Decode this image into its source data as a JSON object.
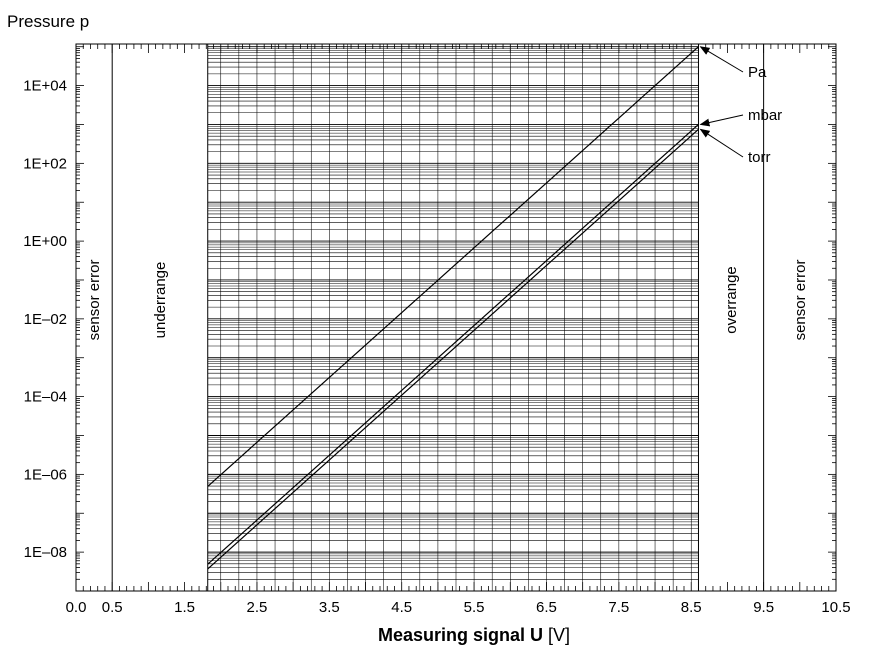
{
  "chart_data": {
    "type": "line",
    "title": "",
    "ylabel": "Pressure p",
    "xlabel": "Measuring signal U [V]",
    "xlabel_main": "Measuring signal U ",
    "xlabel_unit": "[V]",
    "x_scale": "linear",
    "y_scale": "log",
    "xlim": [
      0,
      10.5
    ],
    "ylim": [
      1e-09,
      120000.0
    ],
    "x_ticks": [
      0.0,
      0.5,
      1.5,
      2.5,
      3.5,
      4.5,
      5.5,
      6.5,
      7.5,
      8.5,
      9.5,
      10.5
    ],
    "x_tick_labels": [
      "0.0",
      "0.5",
      "1.5",
      "2.5",
      "3.5",
      "4.5",
      "5.5",
      "6.5",
      "7.5",
      "8.5",
      "9.5",
      "10.5"
    ],
    "y_ticks": [
      1e-08,
      1e-06,
      0.0001,
      0.01,
      1,
      100,
      10000
    ],
    "y_tick_labels": [
      "1E–08",
      "1E–06",
      "1E–04",
      "1E–02",
      "1E+00",
      "1E+02",
      "1E+04"
    ],
    "grid": true,
    "series": [
      {
        "name": "Pa",
        "x": [
          1.82,
          8.6
        ],
        "y": [
          4.9e-07,
          100000.0
        ]
      },
      {
        "name": "mbar",
        "x": [
          1.82,
          8.6
        ],
        "y": [
          4.9e-09,
          1000.0
        ]
      },
      {
        "name": "torr",
        "x": [
          1.82,
          8.6
        ],
        "y": [
          3.7e-09,
          750.0
        ]
      }
    ],
    "regions": [
      {
        "label": "sensor error",
        "x_from": 0.0,
        "x_to": 0.5
      },
      {
        "label": "underrange",
        "x_from": 0.5,
        "x_to": 1.82
      },
      {
        "label": "overrange",
        "x_from": 8.6,
        "x_to": 9.5
      },
      {
        "label": "sensor error",
        "x_from": 9.5,
        "x_to": 10.5
      }
    ],
    "annotations": [
      {
        "text": "Pa",
        "points_to_series": "Pa"
      },
      {
        "text": "mbar",
        "points_to_series": "mbar"
      },
      {
        "text": "torr",
        "points_to_series": "torr"
      }
    ],
    "colors": {
      "line": "#000000",
      "grid": "#000000",
      "background": "#ffffff"
    }
  }
}
